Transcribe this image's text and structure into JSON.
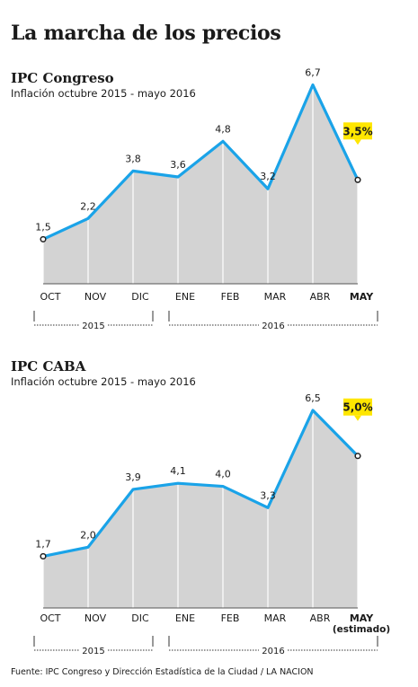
{
  "title": "La marcha de los precios",
  "source": "Fuente: IPC Congreso y Dirección Estadística de la Ciudad / LA NACION",
  "chart_data": [
    {
      "type": "area",
      "title": "IPC Congreso",
      "subtitle": "Inflación octubre 2015 - mayo 2016",
      "categories": [
        "OCT",
        "NOV",
        "DIC",
        "ENE",
        "FEB",
        "MAR",
        "ABR",
        "MAY"
      ],
      "category_note": "",
      "values": [
        1.5,
        2.2,
        3.8,
        3.6,
        4.8,
        3.2,
        6.7,
        3.5
      ],
      "value_labels": [
        "1,5",
        "2,2",
        "3,8",
        "3,6",
        "4,8",
        "3,2",
        "6,7",
        "3,5%"
      ],
      "highlight_index": 7,
      "year_groups": [
        {
          "label": "2015",
          "from": 0,
          "to": 2
        },
        {
          "label": "2016",
          "from": 3,
          "to": 7
        }
      ],
      "ylim": [
        0,
        7.2
      ],
      "colors": {
        "line": "#1aa3e8",
        "area": "#d3d3d3",
        "highlight": "#ffe600"
      }
    },
    {
      "type": "area",
      "title": "IPC CABA",
      "subtitle": "Inflación octubre 2015 - mayo 2016",
      "categories": [
        "OCT",
        "NOV",
        "DIC",
        "ENE",
        "FEB",
        "MAR",
        "ABR",
        "MAY"
      ],
      "category_note": "(estimado)",
      "values": [
        1.7,
        2.0,
        3.9,
        4.1,
        4.0,
        3.3,
        6.5,
        5.0
      ],
      "value_labels": [
        "1,7",
        "2,0",
        "3,9",
        "4,1",
        "4,0",
        "3,3",
        "6,5",
        "5,0%"
      ],
      "highlight_index": 7,
      "year_groups": [
        {
          "label": "2015",
          "from": 0,
          "to": 2
        },
        {
          "label": "2016",
          "from": 3,
          "to": 7
        }
      ],
      "ylim": [
        0,
        7.0
      ],
      "colors": {
        "line": "#1aa3e8",
        "area": "#d3d3d3",
        "highlight": "#ffe600"
      }
    }
  ]
}
